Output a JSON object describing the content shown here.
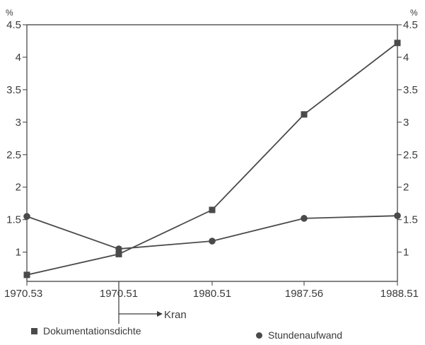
{
  "chart_data": {
    "type": "line",
    "x_categories": [
      "1970.53",
      "1970.51",
      "1980.51",
      "1987.56",
      "1988.51"
    ],
    "y_unit_left": "%",
    "y_unit_right": "%",
    "y_ticks": [
      "1",
      "1.5",
      "2",
      "2.5",
      "3",
      "3.5",
      "4",
      "4.5"
    ],
    "y_axis_min": 0.55,
    "y_axis_max": 4.5,
    "annotation": "Kran",
    "series": [
      {
        "name": "Dokumentationsdichte",
        "marker": "square",
        "values": [
          0.65,
          0.97,
          1.65,
          3.12,
          4.22
        ]
      },
      {
        "name": "Stundenaufwand",
        "marker": "circle",
        "values": [
          1.55,
          1.05,
          1.17,
          1.52,
          1.56
        ]
      }
    ],
    "colors": {
      "line": "#4a4a4a",
      "axis": "#3a3a3a"
    }
  }
}
